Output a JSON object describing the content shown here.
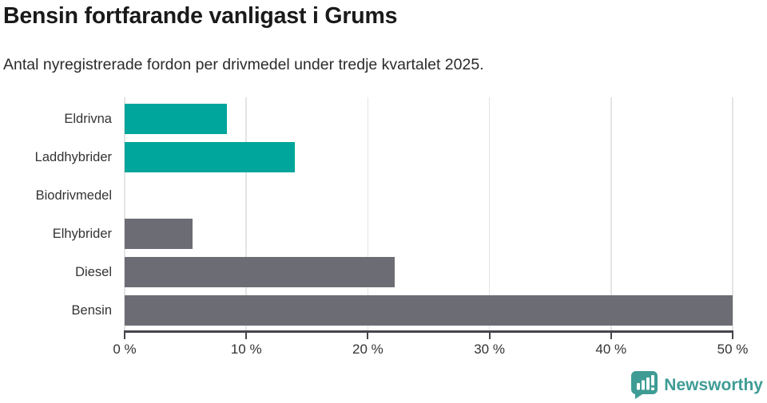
{
  "title": "Bensin fortfarande vanligast i Grums",
  "subtitle": "Antal nyregistrerade fordon per drivmedel under tredje kvartalet 2025.",
  "chart_data": {
    "type": "bar",
    "orientation": "horizontal",
    "title": "Bensin fortfarande vanligast i Grums",
    "subtitle": "Antal nyregistrerade fordon per drivmedel under tredje kvartalet 2025.",
    "categories": [
      "Eldrivna",
      "Laddhybrider",
      "Biodrivmedel",
      "Elhybrider",
      "Diesel",
      "Bensin"
    ],
    "values": [
      8.4,
      14,
      0,
      5.6,
      22.2,
      50
    ],
    "unit": "%",
    "xlabel": "",
    "ylabel": "",
    "xlim": [
      0,
      50
    ],
    "x_ticks": [
      "0 %",
      "10 %",
      "20 %",
      "30 %",
      "40 %",
      "50 %"
    ],
    "x_tick_values": [
      0,
      10,
      20,
      30,
      40,
      50
    ],
    "grid": true,
    "legend": false,
    "bar_colors": [
      "#00a59b",
      "#00a59b",
      "#00a59b",
      "#6c6c74",
      "#6c6c74",
      "#6c6c74"
    ]
  },
  "branding": {
    "wordmark": "Newsworthy",
    "icon": "newsworthy-speech-bubble-barchart-icon",
    "color": "#3f9c95"
  },
  "colors": {
    "accent_teal": "#00a59b",
    "neutral_gray": "#6c6c74",
    "axis": "#45454d",
    "gridline": "#e4e4e4",
    "title_text": "#1a1a1a"
  }
}
